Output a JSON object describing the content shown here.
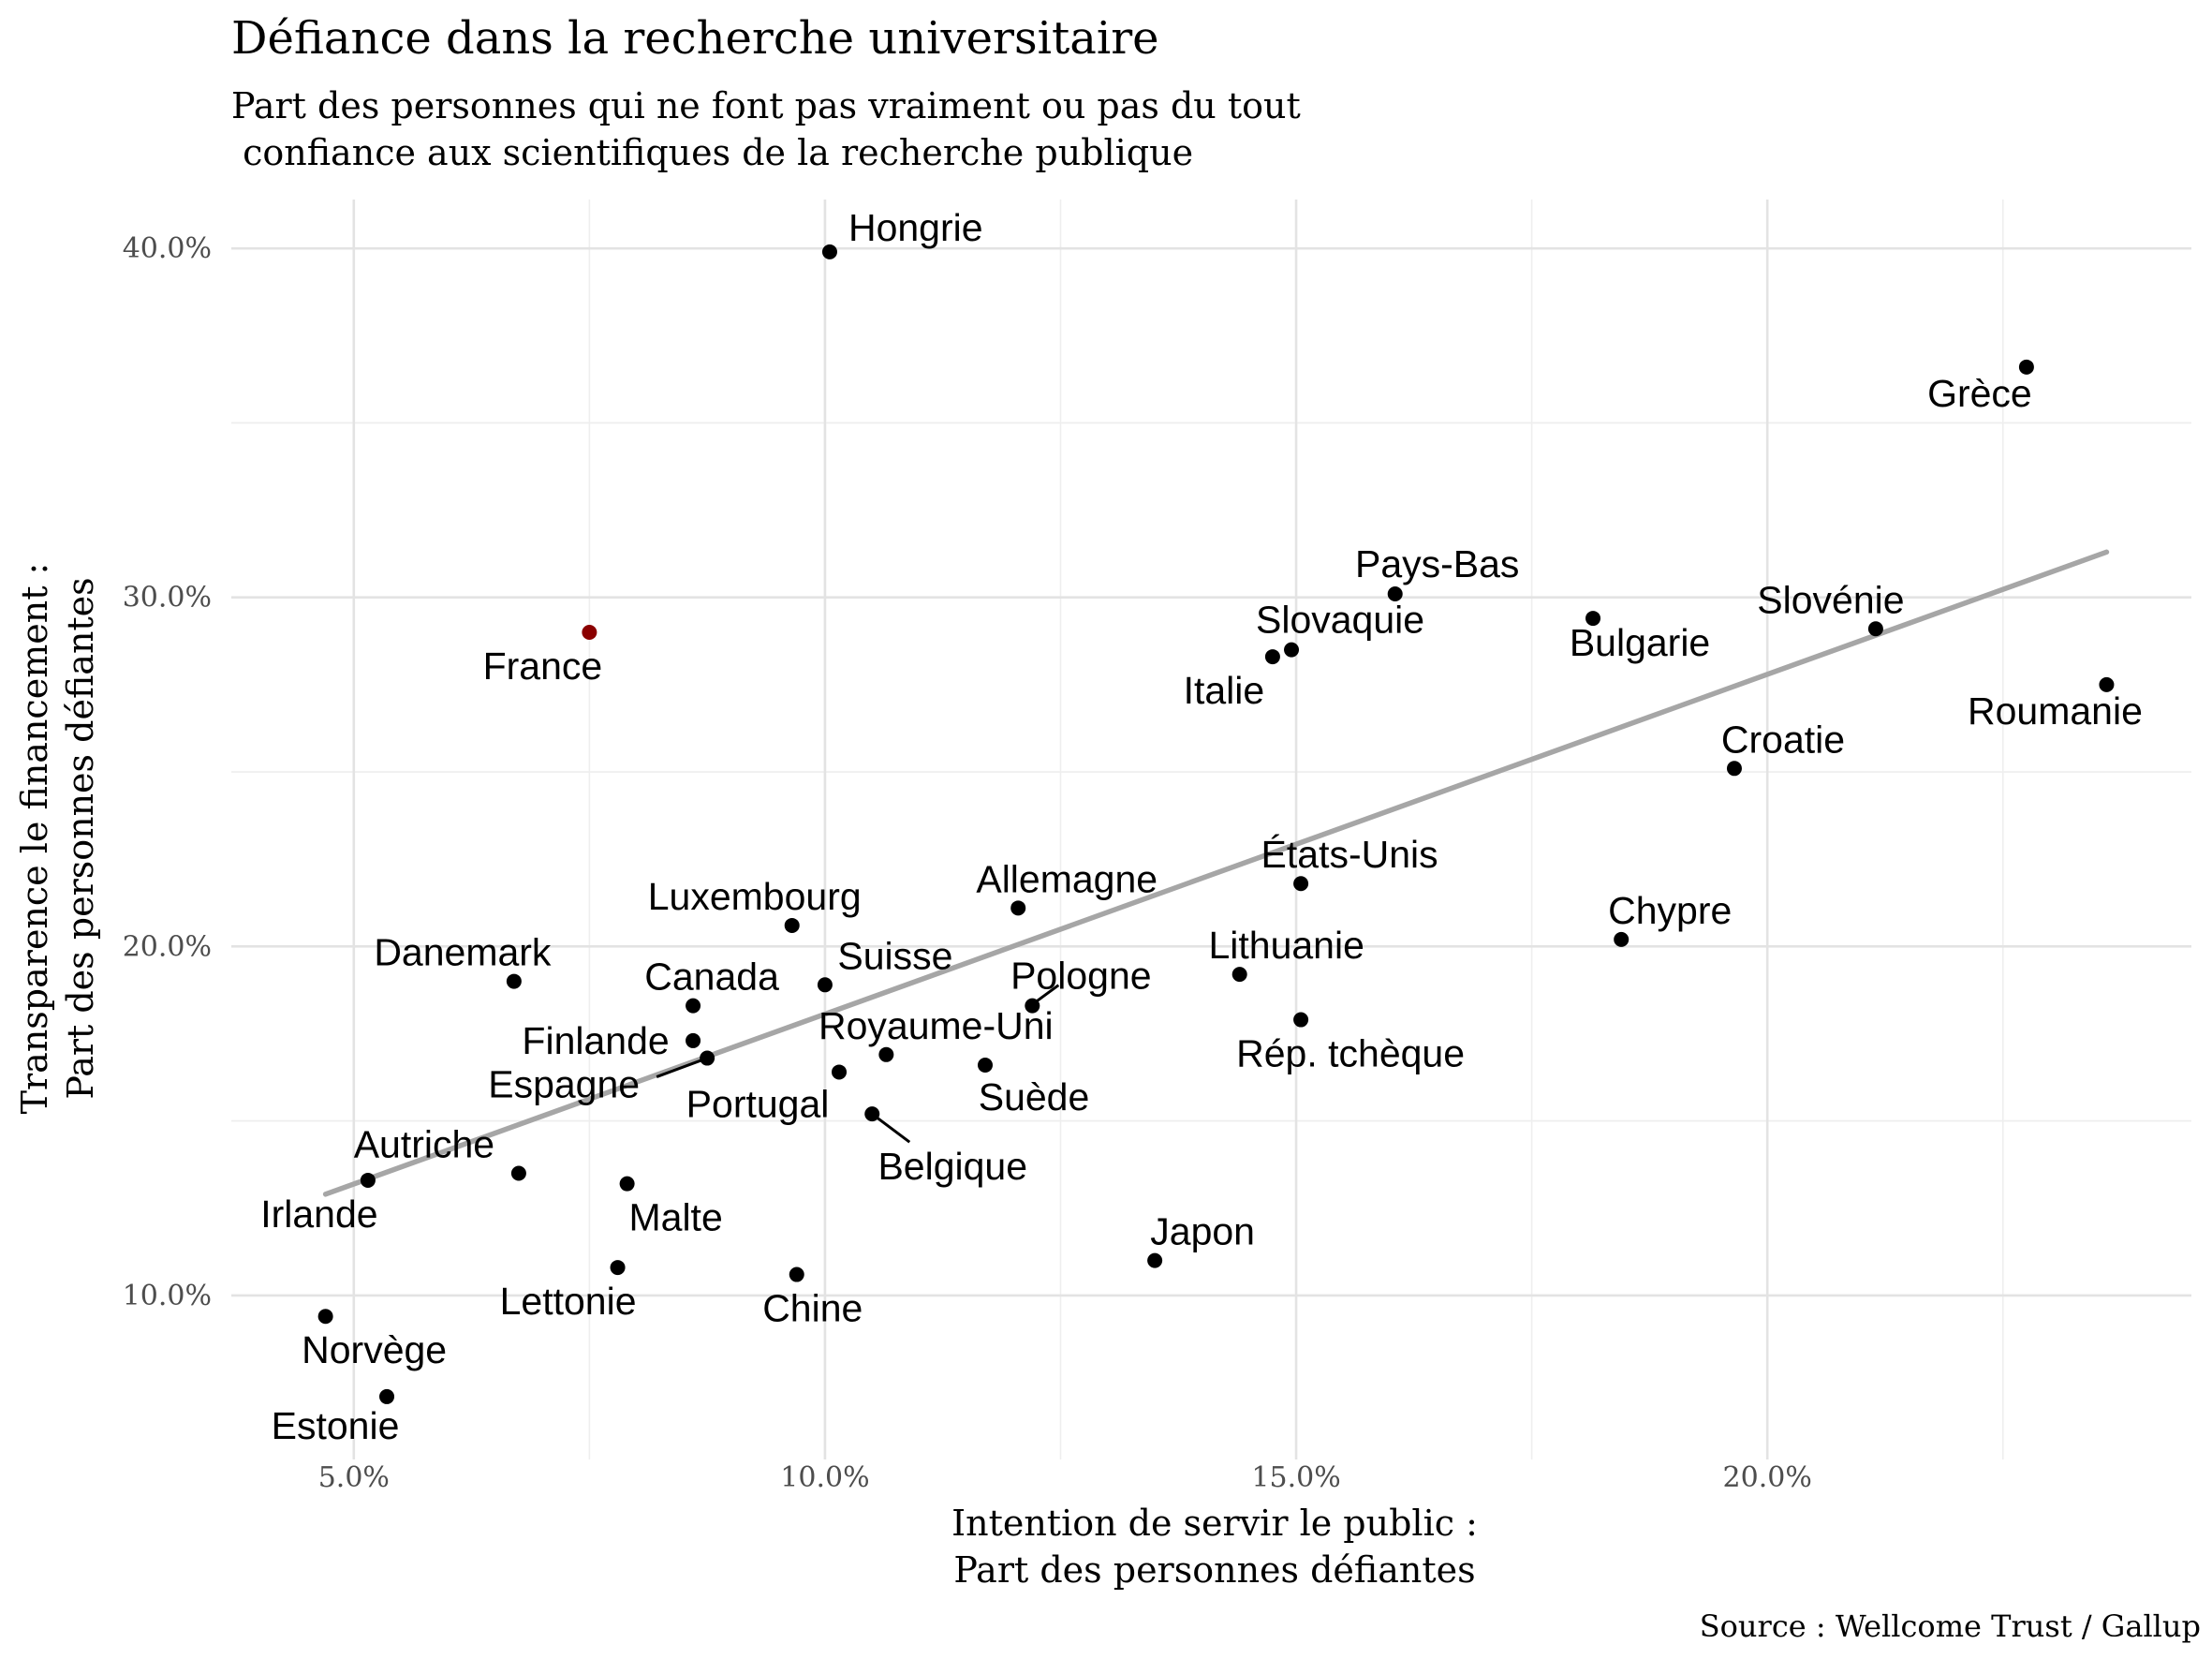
{
  "chart_data": {
    "type": "scatter",
    "title": "Défiance dans la recherche universitaire",
    "subtitle_lines": [
      "Part des personnes qui ne font pas vraiment ou pas du tout",
      " confiance aux scientifiques de la recherche publique"
    ],
    "xlabel_lines": [
      "Intention de servir le public :",
      "Part des personnes défiantes"
    ],
    "ylabel_lines": [
      "Transparence le financement :",
      "Part des personnes défiantes"
    ],
    "caption": "Source : Wellcome Trust / Gallup",
    "xlim": [
      3.7,
      24.5
    ],
    "ylim": [
      5.3,
      41.4
    ],
    "x_ticks": [
      5,
      10,
      15,
      20
    ],
    "x_tick_labels": [
      "5.0%",
      "10.0%",
      "15.0%",
      "20.0%"
    ],
    "y_ticks": [
      10,
      20,
      30,
      40
    ],
    "y_tick_labels": [
      "10.0%",
      "20.0%",
      "30.0%",
      "40.0%"
    ],
    "grid": true,
    "trend_line": {
      "type": "linear",
      "x": [
        4.7,
        23.6
      ],
      "y": [
        12.9,
        31.3
      ],
      "color": "#a6a6a6"
    },
    "colors": {
      "point": "#000000",
      "highlight": "#8b0000"
    },
    "points": [
      {
        "country": "Hongrie",
        "x": 10.05,
        "y": 39.9
      },
      {
        "country": "Grèce",
        "x": 22.75,
        "y": 36.6
      },
      {
        "country": "Pays-Bas",
        "x": 16.05,
        "y": 30.1
      },
      {
        "country": "Slovaquie",
        "x": 14.95,
        "y": 28.5
      },
      {
        "country": "Italie",
        "x": 14.75,
        "y": 28.3
      },
      {
        "country": "Bulgarie",
        "x": 18.15,
        "y": 29.4
      },
      {
        "country": "Slovénie",
        "x": 21.15,
        "y": 29.1
      },
      {
        "country": "Roumanie",
        "x": 23.6,
        "y": 27.5
      },
      {
        "country": "Croatie",
        "x": 19.65,
        "y": 25.1
      },
      {
        "country": "France",
        "x": 7.5,
        "y": 29.0,
        "highlight": true
      },
      {
        "country": "États-Unis",
        "x": 15.05,
        "y": 21.8
      },
      {
        "country": "Allemagne",
        "x": 12.05,
        "y": 21.1
      },
      {
        "country": "Luxembourg",
        "x": 9.65,
        "y": 20.6
      },
      {
        "country": "Chypre",
        "x": 18.45,
        "y": 20.2
      },
      {
        "country": "Danemark",
        "x": 6.7,
        "y": 19.0
      },
      {
        "country": "Suisse",
        "x": 10.0,
        "y": 18.9
      },
      {
        "country": "Lithuanie",
        "x": 14.4,
        "y": 19.2
      },
      {
        "country": "Canada",
        "x": 8.6,
        "y": 18.3
      },
      {
        "country": "Pologne",
        "x": 12.2,
        "y": 18.3
      },
      {
        "country": "Rép. tchèque",
        "x": 15.05,
        "y": 17.9
      },
      {
        "country": "Finlande",
        "x": 8.6,
        "y": 17.3
      },
      {
        "country": "Espagne",
        "x": 8.75,
        "y": 16.8
      },
      {
        "country": "Royaume-Uni",
        "x": 10.65,
        "y": 16.9
      },
      {
        "country": "Suède",
        "x": 11.7,
        "y": 16.6
      },
      {
        "country": "Portugal",
        "x": 10.15,
        "y": 16.4
      },
      {
        "country": "Belgique",
        "x": 10.5,
        "y": 15.2
      },
      {
        "country": "Autriche",
        "x": 6.75,
        "y": 13.5
      },
      {
        "country": "Irlande",
        "x": 5.15,
        "y": 13.3
      },
      {
        "country": "Malte",
        "x": 7.9,
        "y": 13.2
      },
      {
        "country": "Japon",
        "x": 13.5,
        "y": 11.0
      },
      {
        "country": "Lettonie",
        "x": 7.8,
        "y": 10.8
      },
      {
        "country": "Chine",
        "x": 9.7,
        "y": 10.6
      },
      {
        "country": "Norvège",
        "x": 4.7,
        "y": 9.4
      },
      {
        "country": "Estonie",
        "x": 5.35,
        "y": 7.1
      }
    ]
  }
}
